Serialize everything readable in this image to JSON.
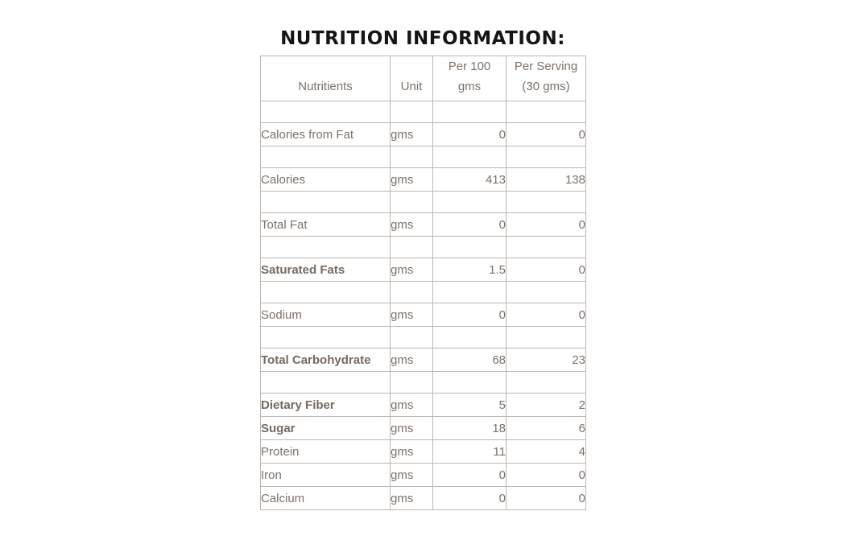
{
  "title": "NUTRITION INFORMATION:",
  "colors": {
    "title_text": "#151515",
    "table_text": "#7d7168",
    "bold_label_text": "#756a60",
    "border_inner": "#bdb5ad",
    "border_outer": "#a59d95",
    "background": "#ffffff"
  },
  "table": {
    "headers": {
      "nutrients": "Nutritients",
      "unit": "Unit",
      "per100_line1": "Per 100",
      "per100_line2": "gms",
      "serving_line1": "Per Serving",
      "serving_line2": "(30 gms)"
    },
    "rows": [
      {
        "type": "spacer"
      },
      {
        "type": "data",
        "name": "Calories from Fat",
        "unit": "gms",
        "per100": "0",
        "serving": "0",
        "bold": false
      },
      {
        "type": "spacer"
      },
      {
        "type": "data",
        "name": "Calories",
        "unit": "gms",
        "per100": "413",
        "serving": "138",
        "bold": false
      },
      {
        "type": "spacer"
      },
      {
        "type": "data",
        "name": "Total Fat",
        "unit": "gms",
        "per100": "0",
        "serving": "0",
        "bold": false
      },
      {
        "type": "spacer"
      },
      {
        "type": "data",
        "name": "Saturated Fats",
        "unit": "gms",
        "per100": "1.5",
        "serving": "0",
        "bold": true
      },
      {
        "type": "spacer"
      },
      {
        "type": "data",
        "name": "Sodium",
        "unit": "gms",
        "per100": "0",
        "serving": "0",
        "bold": false
      },
      {
        "type": "spacer"
      },
      {
        "type": "data",
        "name": "Total Carbohydrate",
        "unit": "gms",
        "per100": "68",
        "serving": "23",
        "bold": true
      },
      {
        "type": "spacer"
      },
      {
        "type": "data",
        "name": "Dietary Fiber",
        "unit": "gms",
        "per100": "5",
        "serving": "2",
        "bold": true
      },
      {
        "type": "data",
        "name": "Sugar",
        "unit": "gms",
        "per100": "18",
        "serving": "6",
        "bold": true
      },
      {
        "type": "data",
        "name": "Protein",
        "unit": "gms",
        "per100": "11",
        "serving": "4",
        "bold": false
      },
      {
        "type": "data",
        "name": "Iron",
        "unit": "gms",
        "per100": "0",
        "serving": "0",
        "bold": false
      },
      {
        "type": "data",
        "name": "Calcium",
        "unit": "gms",
        "per100": "0",
        "serving": "0",
        "bold": false
      }
    ]
  }
}
